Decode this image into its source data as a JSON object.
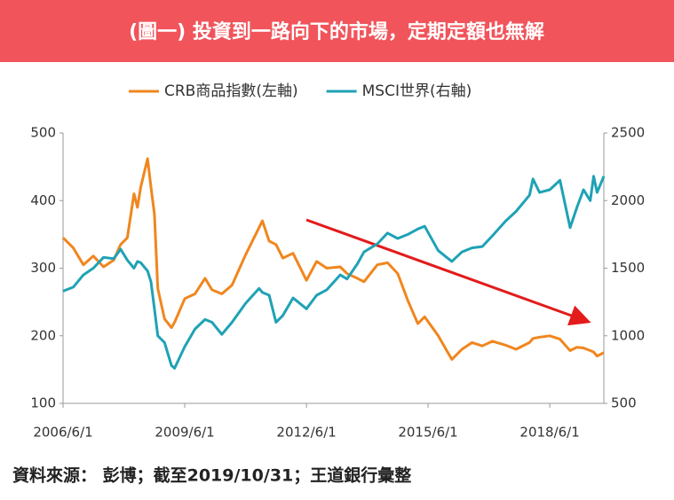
{
  "chart_data": {
    "type": "line",
    "title": "(圖一) 投資到一路向下的市場，定期定額也無解",
    "source": "資料來源： 彭博；截至2019/10/31；王道銀行彙整",
    "x": [
      "2006/6/1",
      "2006/9/1",
      "2006/12/1",
      "2007/3/1",
      "2007/6/1",
      "2007/9/1",
      "2007/11/1",
      "2008/1/1",
      "2008/3/1",
      "2008/4/1",
      "2008/5/1",
      "2008/7/1",
      "2008/8/1",
      "2008/9/1",
      "2008/10/1",
      "2008/12/1",
      "2009/2/1",
      "2009/3/1",
      "2009/6/1",
      "2009/9/1",
      "2009/12/1",
      "2010/2/1",
      "2010/5/1",
      "2010/8/1",
      "2010/12/1",
      "2011/4/1",
      "2011/5/1",
      "2011/7/1",
      "2011/9/1",
      "2011/11/1",
      "2012/2/1",
      "2012/6/1",
      "2012/9/1",
      "2012/12/1",
      "2013/4/1",
      "2013/6/1",
      "2013/9/1",
      "2013/11/1",
      "2014/3/1",
      "2014/6/1",
      "2014/9/1",
      "2014/12/1",
      "2015/3/1",
      "2015/5/1",
      "2015/9/1",
      "2016/1/1",
      "2016/4/1",
      "2016/7/1",
      "2016/10/1",
      "2017/1/1",
      "2017/5/1",
      "2017/8/1",
      "2017/12/1",
      "2018/1/1",
      "2018/3/1",
      "2018/6/1",
      "2018/9/1",
      "2018/12/1",
      "2019/2/1",
      "2019/4/1",
      "2019/6/1",
      "2019/7/1",
      "2019/8/1",
      "2019/10/1"
    ],
    "series": [
      {
        "name": "CRB商品指數(左軸)",
        "color": "#f0861e",
        "values": [
          345,
          330,
          305,
          318,
          302,
          312,
          335,
          345,
          410,
          390,
          420,
          462,
          420,
          380,
          270,
          225,
          212,
          220,
          255,
          262,
          285,
          268,
          262,
          275,
          320,
          360,
          370,
          340,
          335,
          315,
          322,
          282,
          310,
          300,
          302,
          292,
          285,
          280,
          305,
          308,
          292,
          252,
          218,
          228,
          200,
          165,
          180,
          190,
          185,
          192,
          186,
          180,
          190,
          196,
          198,
          200,
          195,
          178,
          183,
          182,
          178,
          176,
          170,
          175
        ]
      },
      {
        "name": "MSCI世界(右軸)",
        "color": "#1fa2b5",
        "axis": "y2",
        "values": [
          1330,
          1360,
          1450,
          1500,
          1580,
          1570,
          1640,
          1560,
          1500,
          1550,
          1540,
          1480,
          1400,
          1200,
          1000,
          950,
          780,
          760,
          920,
          1050,
          1120,
          1100,
          1010,
          1100,
          1240,
          1350,
          1320,
          1300,
          1100,
          1150,
          1280,
          1200,
          1300,
          1340,
          1450,
          1420,
          1530,
          1620,
          1680,
          1760,
          1720,
          1750,
          1790,
          1810,
          1630,
          1550,
          1620,
          1650,
          1660,
          1740,
          1850,
          1920,
          2040,
          2160,
          2060,
          2080,
          2150,
          1800,
          1950,
          2080,
          2000,
          2180,
          2060,
          2180
        ]
      }
    ],
    "xlim": [
      "2006/6/1",
      "2019/10/1"
    ],
    "xticks": [
      "2006/6/1",
      "2009/6/1",
      "2012/6/1",
      "2015/6/1",
      "2018/6/1"
    ],
    "ylim": [
      100,
      500
    ],
    "yticks": [
      100,
      200,
      300,
      400,
      500
    ],
    "y2lim": [
      500,
      2500
    ],
    "y2ticks": [
      500,
      1000,
      1500,
      2000,
      2500
    ],
    "grid": false,
    "legend": "top"
  }
}
